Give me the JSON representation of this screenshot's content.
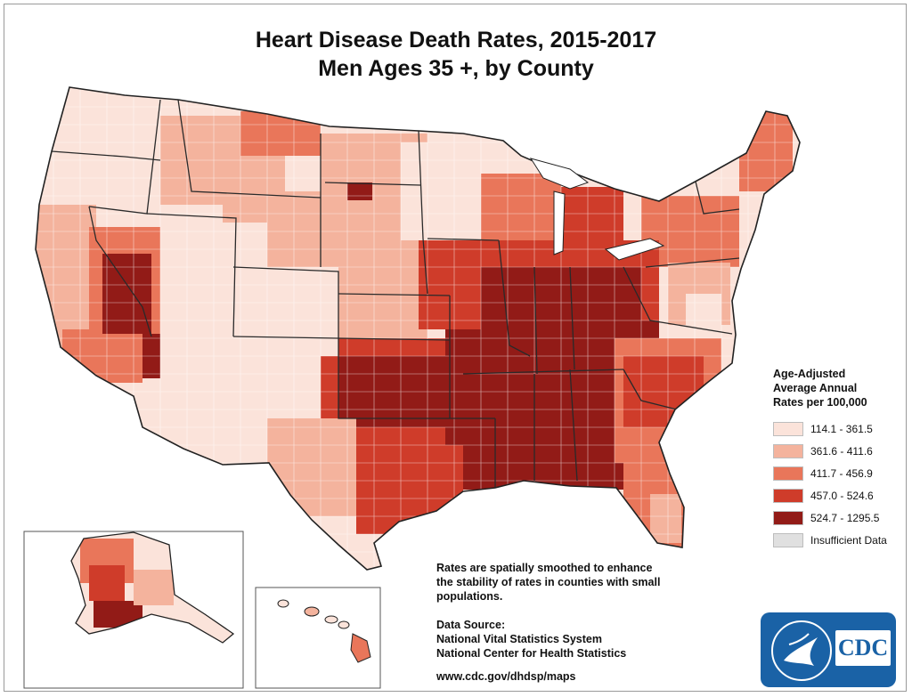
{
  "title_line1": "Heart Disease Death Rates, 2015-2017",
  "title_line2": "Men Ages 35 +, by County",
  "legend": {
    "title_lines": [
      "Age-Adjusted",
      "Average Annual",
      "Rates per 100,000"
    ],
    "classes": [
      {
        "label": "114.1 - 361.5",
        "color": "#fbe3da"
      },
      {
        "label": "361.6 - 411.6",
        "color": "#f4b39d"
      },
      {
        "label": "411.7 - 456.9",
        "color": "#e9765a"
      },
      {
        "label": "457.0 - 524.6",
        "color": "#cf3c2a"
      },
      {
        "label": "524.7 - 1295.5",
        "color": "#921b17"
      },
      {
        "label": "Insufficient Data",
        "color": "#e0e0e0"
      }
    ]
  },
  "notes": {
    "smoothing_lines": [
      "Rates are spatially smoothed to enhance",
      "the stability of rates in counties with small",
      "populations."
    ],
    "source_lines": [
      "Data Source:",
      "National Vital Statistics System",
      "National Center for Health Statistics"
    ],
    "url": "www.cdc.gov/dhdsp/maps"
  },
  "logo": {
    "text": "CDC",
    "color": "#1a62a6"
  }
}
